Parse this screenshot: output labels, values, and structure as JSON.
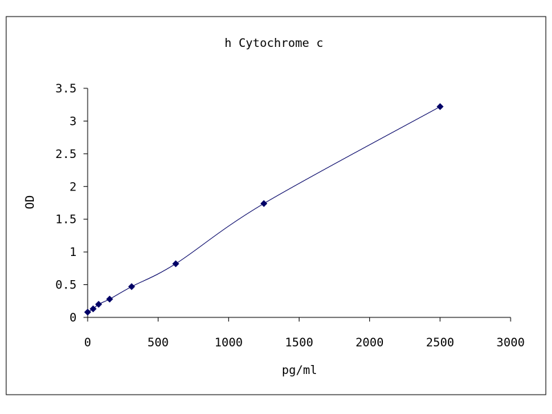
{
  "chart_data": {
    "type": "line",
    "title": "h Cytochrome c",
    "xlabel": "pg/ml",
    "ylabel": "OD",
    "xlim": [
      0,
      3000
    ],
    "ylim": [
      0,
      3.5
    ],
    "x_ticks": [
      "0",
      "500",
      "1000",
      "1500",
      "2000",
      "2500",
      "3000"
    ],
    "y_ticks": [
      "0",
      "0.5",
      "1",
      "1.5",
      "2",
      "2.5",
      "3",
      "3.5"
    ],
    "grid": false,
    "legend": "none",
    "series": [
      {
        "color": "#000066",
        "marker": "diamond",
        "points": [
          {
            "x": 0,
            "y": 0.08
          },
          {
            "x": 39,
            "y": 0.13
          },
          {
            "x": 78,
            "y": 0.2
          },
          {
            "x": 156,
            "y": 0.28
          },
          {
            "x": 312,
            "y": 0.47
          },
          {
            "x": 625,
            "y": 0.82
          },
          {
            "x": 1250,
            "y": 1.74
          },
          {
            "x": 2500,
            "y": 3.22
          }
        ]
      }
    ]
  }
}
